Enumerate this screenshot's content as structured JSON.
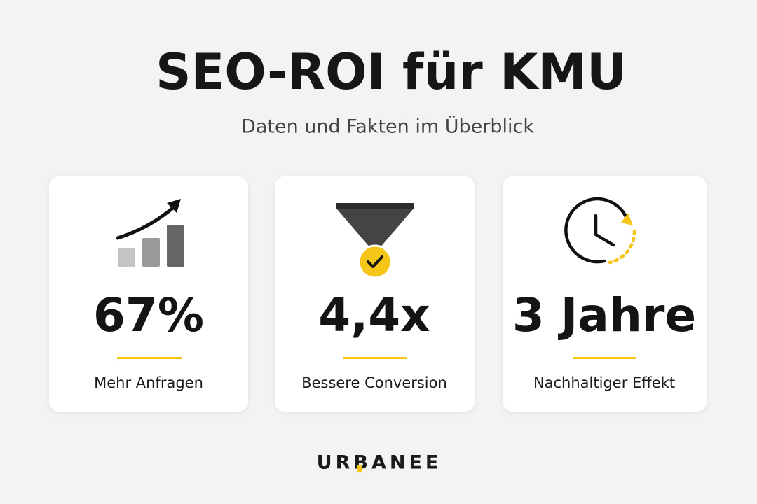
{
  "header": {
    "title": "SEO-ROI für KMU",
    "subtitle": "Daten und Fakten im Überblick"
  },
  "cards": [
    {
      "value": "67%",
      "label": "Mehr Anfragen"
    },
    {
      "value": "4,4x",
      "label": "Bessere Conversion"
    },
    {
      "value": "3 Jahre",
      "label": "Nachhaltiger Effekt"
    }
  ],
  "footer": {
    "logo": "URBANEE"
  }
}
